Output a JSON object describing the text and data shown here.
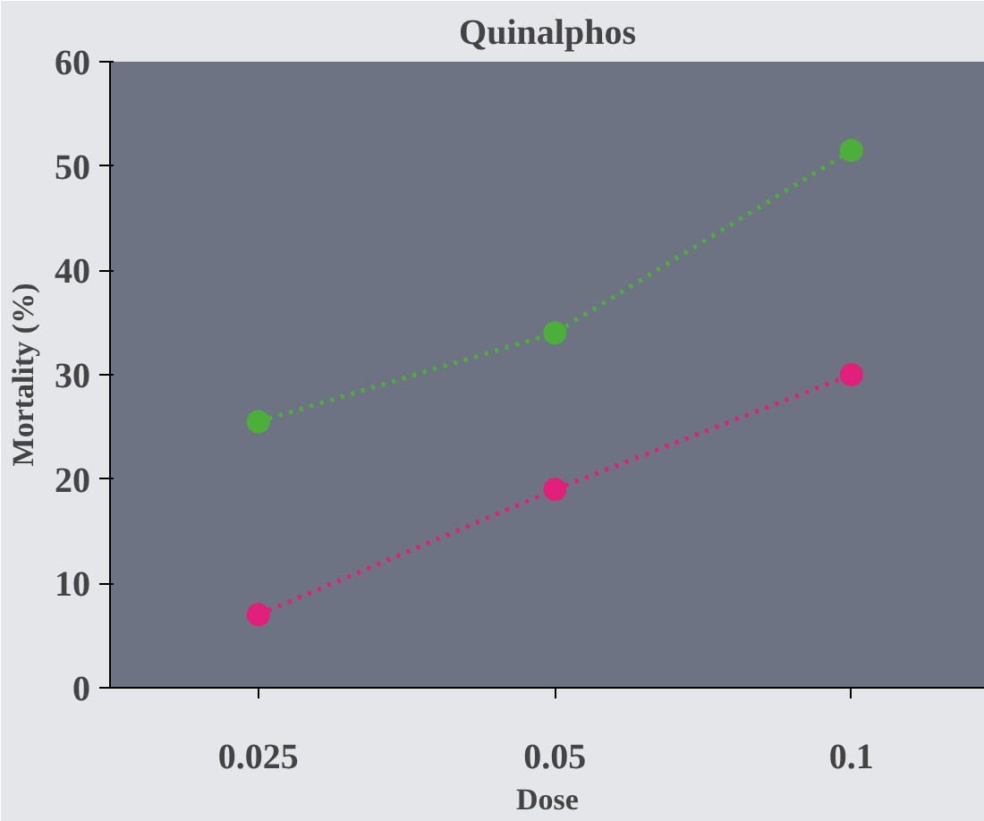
{
  "chart_data": {
    "type": "line",
    "title": "Quinalphos",
    "xlabel": "Dose",
    "ylabel": "Mortality (%)",
    "categories": [
      "0.025",
      "0.05",
      "0.1"
    ],
    "series": [
      {
        "color": "#4caf3a",
        "values": [
          25.5,
          34,
          51.5
        ]
      },
      {
        "color": "#e0207a",
        "values": [
          7,
          19,
          30
        ]
      }
    ],
    "ylim": [
      0,
      60
    ],
    "yticks": [
      0,
      10,
      20,
      30,
      40,
      50,
      60
    ],
    "marker": "circle",
    "line_style": "dotted"
  }
}
